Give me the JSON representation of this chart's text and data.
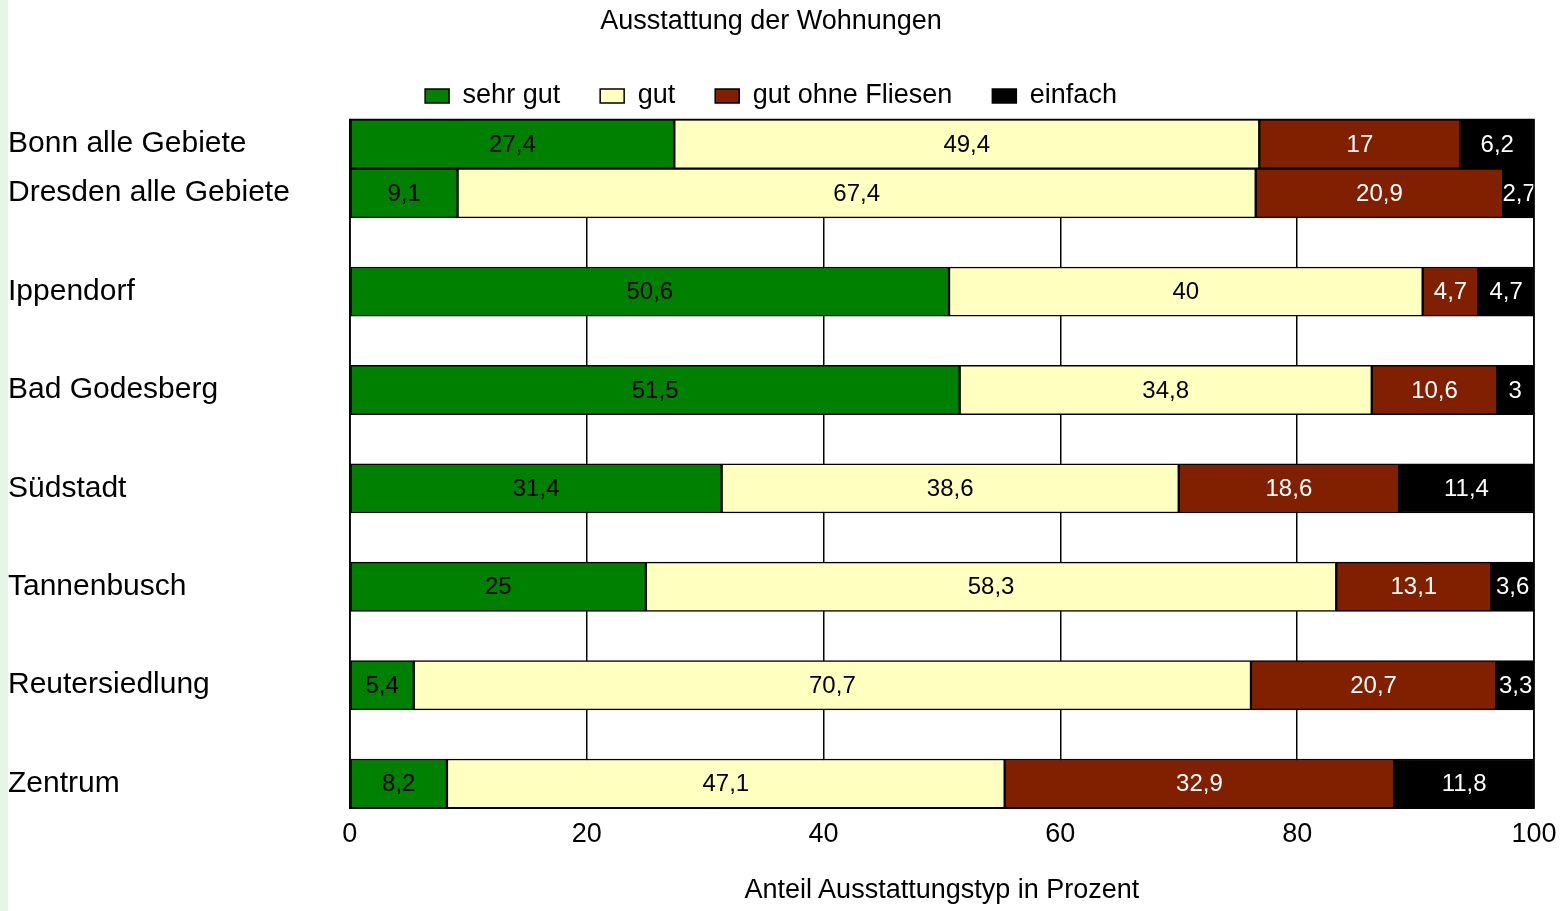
{
  "chart_data": {
    "type": "bar",
    "orientation": "horizontal",
    "stacked": true,
    "legend_title": "Ausstattung der Wohnungen",
    "xlabel": "Anteil Ausstattungstyp in Prozent",
    "categories": [
      "Bonn alle Gebiete",
      "Dresden alle Gebiete",
      null,
      "Ippendorf",
      null,
      "Bad Godesberg",
      null,
      "Südstadt",
      null,
      "Tannenbusch",
      null,
      "Reutersiedlung",
      null,
      "Zentrum"
    ],
    "series": [
      {
        "name": "sehr gut",
        "color": "#008000",
        "values": [
          27.4,
          9.1,
          null,
          50.6,
          null,
          51.5,
          null,
          31.4,
          null,
          25,
          null,
          5.4,
          null,
          8.2
        ],
        "value_labels": [
          "27,4",
          "9,1",
          null,
          "50,6",
          null,
          "51,5",
          null,
          "31,4",
          null,
          "25",
          null,
          "5,4",
          null,
          "8,2"
        ]
      },
      {
        "name": "gut",
        "color": "#ffffc0",
        "values": [
          49.4,
          67.4,
          null,
          40,
          null,
          34.8,
          null,
          38.6,
          null,
          58.3,
          null,
          70.7,
          null,
          47.1
        ],
        "value_labels": [
          "49,4",
          "67,4",
          null,
          "40",
          null,
          "34,8",
          null,
          "38,6",
          null,
          "58,3",
          null,
          "70,7",
          null,
          "47,1"
        ]
      },
      {
        "name": "gut ohne Fliesen",
        "color": "#802000",
        "values": [
          17,
          20.9,
          null,
          4.7,
          null,
          10.6,
          null,
          18.6,
          null,
          13.1,
          null,
          20.7,
          null,
          32.9
        ],
        "value_labels": [
          "17",
          "20,9",
          null,
          "4,7",
          null,
          "10,6",
          null,
          "18,6",
          null,
          "13,1",
          null,
          "20,7",
          null,
          "32,9"
        ]
      },
      {
        "name": "einfach",
        "color": "#000000",
        "values": [
          6.2,
          2.7,
          null,
          4.7,
          null,
          3,
          null,
          11.4,
          null,
          3.6,
          null,
          3.3,
          null,
          11.8
        ],
        "value_labels": [
          "6,2",
          "2,7",
          null,
          "4,7",
          null,
          "3",
          null,
          "11,4",
          null,
          "3,6",
          null,
          "3,3",
          null,
          "11,8"
        ]
      }
    ],
    "xlim": [
      0,
      100
    ],
    "xticks": [
      0,
      20,
      40,
      60,
      80,
      100
    ],
    "grid": "x",
    "legend": "top"
  }
}
